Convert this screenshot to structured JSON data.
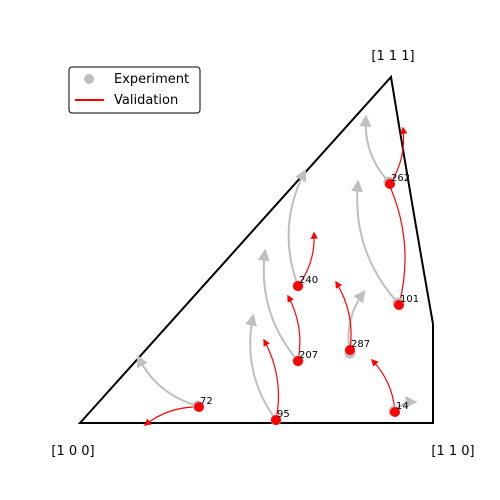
{
  "chart_data": {
    "type": "scatter",
    "subtype": "inverse-pole-figure",
    "corner_labels": {
      "bottom_left": "[1 0 0]",
      "bottom_right": "[1 1 0]",
      "top": "[1 1 1]"
    },
    "legend": {
      "placement": "top-left",
      "entries": [
        {
          "label": "Experiment",
          "marker": "circle",
          "color": "#bfbfbf"
        },
        {
          "label": "Validation",
          "marker": "line",
          "color": "#ff0000"
        }
      ]
    },
    "colors": {
      "experiment": "#bfbfbf",
      "validation": "#ff0000",
      "outline": "#000000"
    },
    "grid": false,
    "points": [
      {
        "label": "72",
        "exp_start": [
          198,
          406
        ],
        "exp_end": [
          138,
          357
        ],
        "val_start": [
          199,
          407
        ],
        "val_end": [
          145,
          425
        ]
      },
      {
        "label": "95",
        "exp_start": [
          276,
          420
        ],
        "exp_end": [
          253,
          316
        ],
        "val_start": [
          276,
          420
        ],
        "val_end": [
          264,
          340
        ]
      },
      {
        "label": "207",
        "exp_start": [
          298,
          361
        ],
        "exp_end": [
          265,
          251
        ],
        "val_start": [
          298,
          361
        ],
        "val_end": [
          288,
          296
        ]
      },
      {
        "label": "240",
        "exp_start": [
          298,
          286
        ],
        "exp_end": [
          305,
          171
        ],
        "val_start": [
          298,
          286
        ],
        "val_end": [
          314,
          233
        ]
      },
      {
        "label": "287",
        "exp_start": [
          350,
          353
        ],
        "exp_end": [
          364,
          292
        ],
        "val_start": [
          350,
          350
        ],
        "val_end": [
          336,
          282
        ]
      },
      {
        "label": "101",
        "exp_start": [
          398,
          303
        ],
        "exp_end": [
          358,
          182
        ],
        "val_start": [
          399,
          305
        ],
        "val_end": [
          387,
          180
        ]
      },
      {
        "label": "262",
        "exp_start": [
          389,
          182
        ],
        "exp_end": [
          366,
          117
        ],
        "val_start": [
          390,
          184
        ],
        "val_end": [
          403,
          128
        ]
      },
      {
        "label": "14",
        "exp_start": [
          394,
          411
        ],
        "exp_end": [
          415,
          402
        ],
        "val_start": [
          395,
          412
        ],
        "val_end": [
          372,
          360
        ]
      }
    ]
  }
}
